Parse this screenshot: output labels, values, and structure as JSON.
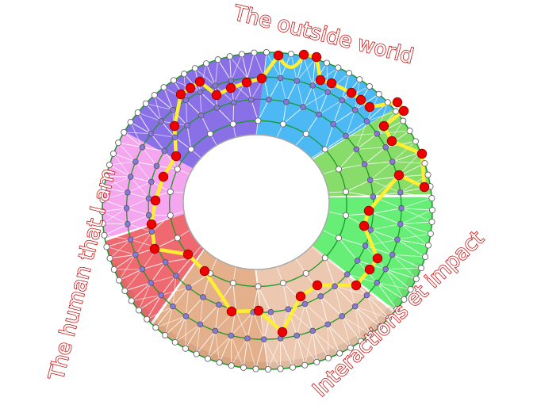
{
  "labels": {
    "top": "The outside world",
    "left": "The human that I am",
    "right": "Interactions et impact"
  },
  "colors": {
    "label_outline": "#cc1111",
    "ring_line": "#1a9a2a",
    "spoke": "#ffffff",
    "outer_node": "#ffffff",
    "inner_node": "#8877dd",
    "path_node": "#ee0000",
    "path_line": "#ffee33"
  },
  "sectors": [
    {
      "name": "sky-blue",
      "color": "#4cb8f4"
    },
    {
      "name": "light-green",
      "color": "#88dc6a"
    },
    {
      "name": "bright-green",
      "color": "#66ee77"
    },
    {
      "name": "light-peach",
      "color": "#ecc8b0"
    },
    {
      "name": "tan",
      "color": "#e4b08c"
    },
    {
      "name": "red",
      "color": "#ee6a70"
    },
    {
      "name": "pink",
      "color": "#f4a6ee"
    },
    {
      "name": "violet",
      "color": "#8a70e6"
    }
  ]
}
